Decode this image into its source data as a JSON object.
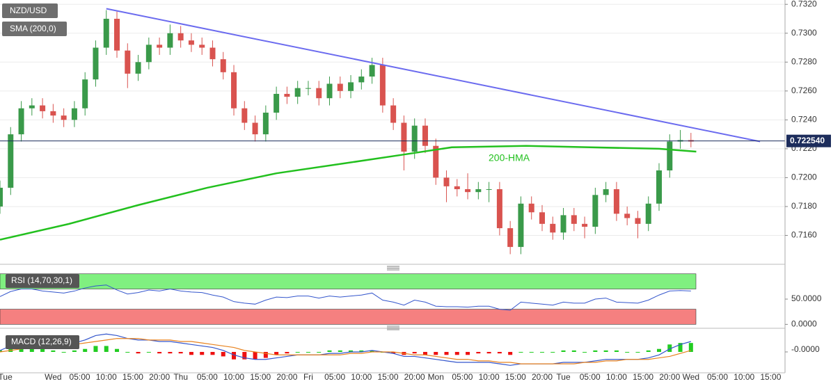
{
  "chart_data": {
    "type": "candlestick",
    "title": "NZD/USD",
    "indicator_label": "SMA (200,0)",
    "x": [
      -10,
      -8,
      -6,
      -4,
      -2,
      0,
      2,
      4,
      6,
      8,
      10,
      12,
      14,
      16,
      18,
      20,
      22,
      24,
      26,
      28,
      30,
      32,
      34,
      36,
      38,
      40,
      42,
      44,
      46,
      48,
      50,
      52,
      54,
      56,
      58,
      60,
      62,
      64,
      66,
      68,
      70,
      72,
      74,
      76,
      78,
      80,
      82,
      84,
      86,
      88,
      90,
      92,
      94,
      96,
      98,
      100,
      102,
      104,
      106,
      108,
      110,
      112,
      114,
      116,
      118,
      120
    ],
    "open": [
      0.718,
      0.7193,
      0.723,
      0.7248,
      0.725,
      0.7246,
      0.7243,
      0.724,
      0.7248,
      0.7268,
      0.729,
      0.731,
      0.7288,
      0.7272,
      0.728,
      0.7292,
      0.729,
      0.73,
      0.7295,
      0.7292,
      0.729,
      0.7282,
      0.7273,
      0.7248,
      0.7238,
      0.723,
      0.7245,
      0.7258,
      0.7256,
      0.7262,
      0.7262,
      0.7255,
      0.7265,
      0.726,
      0.7266,
      0.727,
      0.7278,
      0.725,
      0.7238,
      0.7218,
      0.7236,
      0.7222,
      0.72,
      0.7194,
      0.7192,
      0.719,
      0.7192,
      0.7192,
      0.7165,
      0.7152,
      0.7182,
      0.7176,
      0.7168,
      0.7162,
      0.7174,
      0.7168,
      0.7166,
      0.7188,
      0.7192,
      0.7175,
      0.7172,
      0.7168,
      0.7182,
      0.7205,
      0.7225,
      0.7226
    ],
    "high": [
      0.7198,
      0.7235,
      0.7253,
      0.7255,
      0.7255,
      0.7251,
      0.7248,
      0.7253,
      0.7273,
      0.7295,
      0.7316,
      0.7315,
      0.7293,
      0.7285,
      0.7297,
      0.7297,
      0.7306,
      0.7305,
      0.73,
      0.7297,
      0.7295,
      0.7287,
      0.7278,
      0.7253,
      0.7243,
      0.725,
      0.7263,
      0.7263,
      0.7267,
      0.7267,
      0.7267,
      0.727,
      0.727,
      0.7271,
      0.7275,
      0.7283,
      0.7283,
      0.7255,
      0.7243,
      0.7241,
      0.7241,
      0.7227,
      0.7205,
      0.7199,
      0.7203,
      0.7197,
      0.7197,
      0.7197,
      0.717,
      0.7187,
      0.7187,
      0.7181,
      0.7173,
      0.7179,
      0.7179,
      0.7173,
      0.7193,
      0.7197,
      0.7197,
      0.718,
      0.7177,
      0.7187,
      0.721,
      0.723,
      0.7233,
      0.7231
    ],
    "low": [
      0.7175,
      0.7188,
      0.7225,
      0.7243,
      0.7241,
      0.7238,
      0.7235,
      0.7235,
      0.7243,
      0.7263,
      0.7285,
      0.7283,
      0.7262,
      0.7267,
      0.7275,
      0.7285,
      0.7285,
      0.729,
      0.7287,
      0.7285,
      0.7277,
      0.7268,
      0.7243,
      0.7233,
      0.7225,
      0.7225,
      0.724,
      0.7251,
      0.7251,
      0.7257,
      0.725,
      0.725,
      0.7255,
      0.7255,
      0.7261,
      0.7265,
      0.7245,
      0.7233,
      0.7205,
      0.7213,
      0.7217,
      0.7195,
      0.7183,
      0.7187,
      0.7185,
      0.7185,
      0.7183,
      0.716,
      0.7147,
      0.7147,
      0.7171,
      0.7163,
      0.7157,
      0.7157,
      0.7163,
      0.7158,
      0.7161,
      0.7183,
      0.717,
      0.7167,
      0.7158,
      0.7163,
      0.7177,
      0.72,
      0.722,
      0.7221
    ],
    "close": [
      0.7193,
      0.723,
      0.7248,
      0.725,
      0.7246,
      0.7243,
      0.724,
      0.7248,
      0.7268,
      0.729,
      0.731,
      0.7288,
      0.7272,
      0.728,
      0.7292,
      0.729,
      0.73,
      0.7295,
      0.7292,
      0.729,
      0.7282,
      0.7273,
      0.7248,
      0.7238,
      0.723,
      0.7245,
      0.7258,
      0.7256,
      0.7262,
      0.7262,
      0.7255,
      0.7265,
      0.726,
      0.7266,
      0.727,
      0.7278,
      0.725,
      0.7238,
      0.7218,
      0.7236,
      0.7222,
      0.72,
      0.7194,
      0.7192,
      0.719,
      0.7192,
      0.7192,
      0.7165,
      0.7152,
      0.7182,
      0.7176,
      0.7168,
      0.7162,
      0.7174,
      0.7168,
      0.7166,
      0.7188,
      0.7192,
      0.7175,
      0.7172,
      0.7168,
      0.7182,
      0.7205,
      0.7225,
      0.7226,
      0.7225
    ],
    "colors": {
      "up": "#3a9a4a",
      "down": "#d9534f"
    },
    "xlim": [
      -10,
      137.7
    ],
    "xticks": [
      {
        "value": -9,
        "label": "Tue"
      },
      {
        "value": 0,
        "label": "Wed"
      },
      {
        "value": 5,
        "label": "05:00"
      },
      {
        "value": 10,
        "label": "10:00"
      },
      {
        "value": 15,
        "label": "15:00"
      },
      {
        "value": 20,
        "label": "20:00"
      },
      {
        "value": 24,
        "label": "Thu"
      },
      {
        "value": 29,
        "label": "05:00"
      },
      {
        "value": 34,
        "label": "10:00"
      },
      {
        "value": 39,
        "label": "15:00"
      },
      {
        "value": 44,
        "label": "20:00"
      },
      {
        "value": 48,
        "label": "Fri"
      },
      {
        "value": 53,
        "label": "05:00"
      },
      {
        "value": 58,
        "label": "10:00"
      },
      {
        "value": 63,
        "label": "15:00"
      },
      {
        "value": 68,
        "label": "20:00"
      },
      {
        "value": 72,
        "label": "Mon"
      },
      {
        "value": 77,
        "label": "05:00"
      },
      {
        "value": 82,
        "label": "10:00"
      },
      {
        "value": 87,
        "label": "15:00"
      },
      {
        "value": 92,
        "label": "20:00"
      },
      {
        "value": 96,
        "label": "Tue"
      },
      {
        "value": 101,
        "label": "05:00"
      },
      {
        "value": 106,
        "label": "10:00"
      },
      {
        "value": 111,
        "label": "15:00"
      },
      {
        "value": 116,
        "label": "20:00"
      },
      {
        "value": 120,
        "label": "Wed"
      },
      {
        "value": 125,
        "label": "05:00"
      },
      {
        "value": 130,
        "label": "10:00"
      },
      {
        "value": 135,
        "label": "15:00"
      }
    ],
    "ylim": [
      0.714,
      0.7323
    ],
    "yticks": [
      {
        "value": 0.716,
        "label": "0.7160"
      },
      {
        "value": 0.718,
        "label": "0.7180"
      },
      {
        "value": 0.72,
        "label": "0.7200"
      },
      {
        "value": 0.722,
        "label": "0.7220"
      },
      {
        "value": 0.724,
        "label": "0.7240"
      },
      {
        "value": 0.726,
        "label": "0.7260"
      },
      {
        "value": 0.728,
        "label": "0.7280"
      },
      {
        "value": 0.73,
        "label": "0.7300"
      },
      {
        "value": 0.732,
        "label": "0.7320"
      }
    ],
    "grid": true,
    "hma": {
      "name": "200-HMA",
      "color": "#22c01e",
      "x": [
        -10,
        3,
        16,
        29,
        42,
        55,
        66,
        75,
        89,
        101,
        114,
        121
      ],
      "values": [
        0.7157,
        0.7168,
        0.7181,
        0.7193,
        0.7203,
        0.721,
        0.7216,
        0.7221,
        0.7222,
        0.7221,
        0.722,
        0.7218
      ]
    },
    "trendline": {
      "color": "#6b6bef",
      "x": [
        10,
        133
      ],
      "values": [
        0.7317,
        0.7225
      ]
    },
    "current_price": {
      "value": 0.72254,
      "label": "0.722540",
      "color": "#1d2d5c"
    },
    "rsi": {
      "name": "RSI (14,70,30,1)",
      "color": "#3355cc",
      "values": [
        55,
        65,
        70,
        70,
        66,
        64,
        62,
        66,
        72,
        76,
        78,
        68,
        60,
        63,
        68,
        66,
        70,
        66,
        64,
        63,
        58,
        54,
        45,
        42,
        40,
        48,
        54,
        53,
        56,
        56,
        52,
        56,
        54,
        56,
        58,
        62,
        48,
        44,
        38,
        48,
        44,
        36,
        35,
        35,
        34,
        36,
        36,
        30,
        28,
        44,
        42,
        40,
        38,
        44,
        42,
        42,
        50,
        52,
        44,
        43,
        42,
        48,
        58,
        66,
        67,
        66
      ],
      "bands": [
        [
          70,
          100
        ],
        [
          0,
          30
        ]
      ],
      "band_colors": [
        "#80f080",
        "#f58080"
      ],
      "ylim": [
        -5,
        112
      ],
      "yticks": [
        {
          "value": 0,
          "label": "0.0000"
        },
        {
          "value": 50,
          "label": "50.0000"
        }
      ]
    },
    "macd": {
      "name": "MACD (12,26,9)",
      "macd_color": "#3355cc",
      "signal_color": "#e8821e",
      "hist_colors": {
        "up": "#22cc22",
        "down": "#ee1111"
      },
      "macd": [
        0.0001,
        0.0004,
        0.0006,
        0.0007,
        0.0007,
        0.0006,
        0.0005,
        0.0006,
        0.0008,
        0.0011,
        0.0012,
        0.0011,
        0.0009,
        0.0008,
        0.0008,
        0.0007,
        0.0007,
        0.0006,
        0.0005,
        0.0004,
        0.0003,
        0.0001,
        -0.0002,
        -0.0004,
        -0.0005,
        -0.0005,
        -0.0004,
        -0.0003,
        -0.0002,
        -0.0002,
        -0.0002,
        -0.0001,
        -0.0001,
        0,
        0,
        0.0001,
        0,
        -0.0001,
        -0.0003,
        -0.0003,
        -0.0004,
        -0.0005,
        -0.0006,
        -0.0007,
        -0.0007,
        -0.0007,
        -0.0007,
        -0.0008,
        -0.0009,
        -0.0008,
        -0.0008,
        -0.0008,
        -0.0008,
        -0.0007,
        -0.0007,
        -0.0007,
        -0.0006,
        -0.0005,
        -0.0005,
        -0.0005,
        -0.0005,
        -0.0004,
        -0.0002,
        0.0002,
        0.0005,
        0.0007
      ],
      "signal": [
        0,
        0.0001,
        0.0002,
        0.0003,
        0.0004,
        0.0005,
        0.0005,
        0.0005,
        0.0006,
        0.0007,
        0.0008,
        0.0009,
        0.0009,
        0.0009,
        0.0008,
        0.0008,
        0.0008,
        0.0007,
        0.0007,
        0.0006,
        0.0005,
        0.0004,
        0.0003,
        0.0001,
        0,
        -0.0001,
        -0.0002,
        -0.0002,
        -0.0002,
        -0.0002,
        -0.0002,
        -0.0002,
        -0.0002,
        -0.0001,
        -0.0001,
        0,
        0,
        0,
        -0.0001,
        -0.0002,
        -0.0002,
        -0.0003,
        -0.0004,
        -0.0005,
        -0.0005,
        -0.0006,
        -0.0006,
        -0.0007,
        -0.0007,
        -0.0008,
        -0.0008,
        -0.0008,
        -0.0008,
        -0.0008,
        -0.0008,
        -0.0007,
        -0.0007,
        -0.0006,
        -0.0006,
        -0.0005,
        -0.0005,
        -0.0005,
        -0.0004,
        -0.0003,
        -0.0001,
        0.0001
      ],
      "histogram": [
        0.0001,
        0.0003,
        0.0004,
        0.0004,
        0.0003,
        0.0001,
        0,
        0.0001,
        0.0002,
        0.0004,
        0.0004,
        0.0002,
        0,
        -0.0001,
        0,
        -0.0001,
        -0.0001,
        -0.0001,
        -0.0002,
        -0.0002,
        -0.0002,
        -0.0003,
        -0.0005,
        -0.0005,
        -0.0005,
        -0.0004,
        -0.0002,
        -0.0001,
        0,
        0,
        0,
        0.0001,
        0.0001,
        0.0001,
        0.0001,
        0.0001,
        0,
        -0.0001,
        -0.0002,
        -0.0001,
        -0.0002,
        -0.0002,
        -0.0002,
        -0.0002,
        -0.0002,
        -0.0001,
        -0.0001,
        -0.0001,
        -0.0002,
        0,
        0,
        0,
        0,
        0.0001,
        0.0001,
        0,
        0.0001,
        0.0001,
        0.0001,
        0,
        0,
        0.0001,
        0.0002,
        0.0005,
        0.0006,
        0.0006
      ],
      "ylim": [
        -0.0014,
        0.0014
      ],
      "yticks": [
        {
          "value": 0,
          "label": "-0.0000"
        }
      ]
    }
  }
}
